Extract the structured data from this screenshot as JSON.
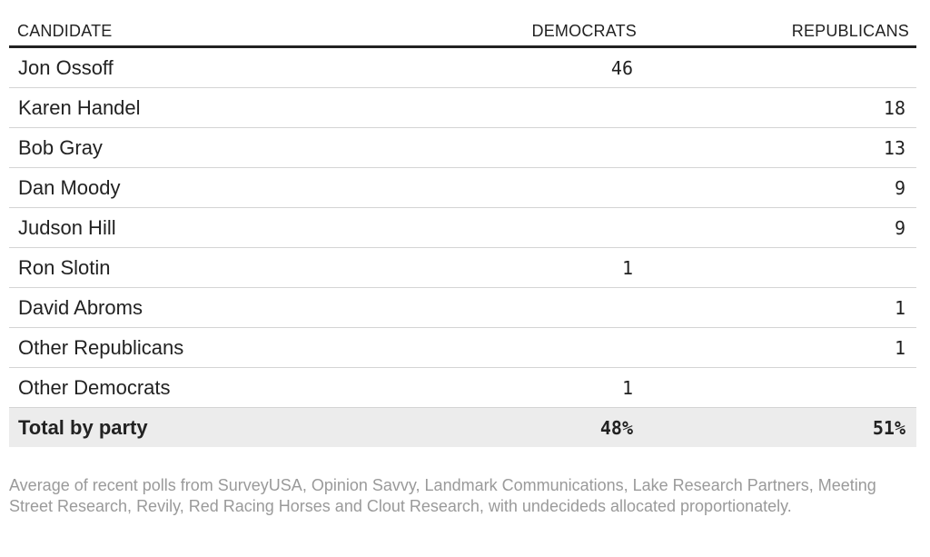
{
  "chart_data": {
    "type": "table",
    "columns": [
      "CANDIDATE",
      "DEMOCRATS",
      "REPUBLICANS"
    ],
    "rows": [
      {
        "candidate": "Jon Ossoff",
        "democrats": "46",
        "republicans": ""
      },
      {
        "candidate": "Karen Handel",
        "democrats": "",
        "republicans": "18"
      },
      {
        "candidate": "Bob Gray",
        "democrats": "",
        "republicans": "13"
      },
      {
        "candidate": "Dan Moody",
        "democrats": "",
        "republicans": "9"
      },
      {
        "candidate": "Judson Hill",
        "democrats": "",
        "republicans": "9"
      },
      {
        "candidate": "Ron Slotin",
        "democrats": "1",
        "republicans": ""
      },
      {
        "candidate": "David Abroms",
        "democrats": "",
        "republicans": "1"
      },
      {
        "candidate": "Other Republicans",
        "democrats": "",
        "republicans": "1"
      },
      {
        "candidate": "Other Democrats",
        "democrats": "1",
        "republicans": ""
      }
    ],
    "total": {
      "candidate": "Total by party",
      "democrats": "48%",
      "republicans": "51%"
    },
    "note": "Average of recent polls from SurveyUSA, Opinion Savvy, Landmark Communications, Lake Research Partners, Meeting Street Research, Revily, Red Racing Horses and Clout Research, with undecideds allocated proportionately."
  }
}
